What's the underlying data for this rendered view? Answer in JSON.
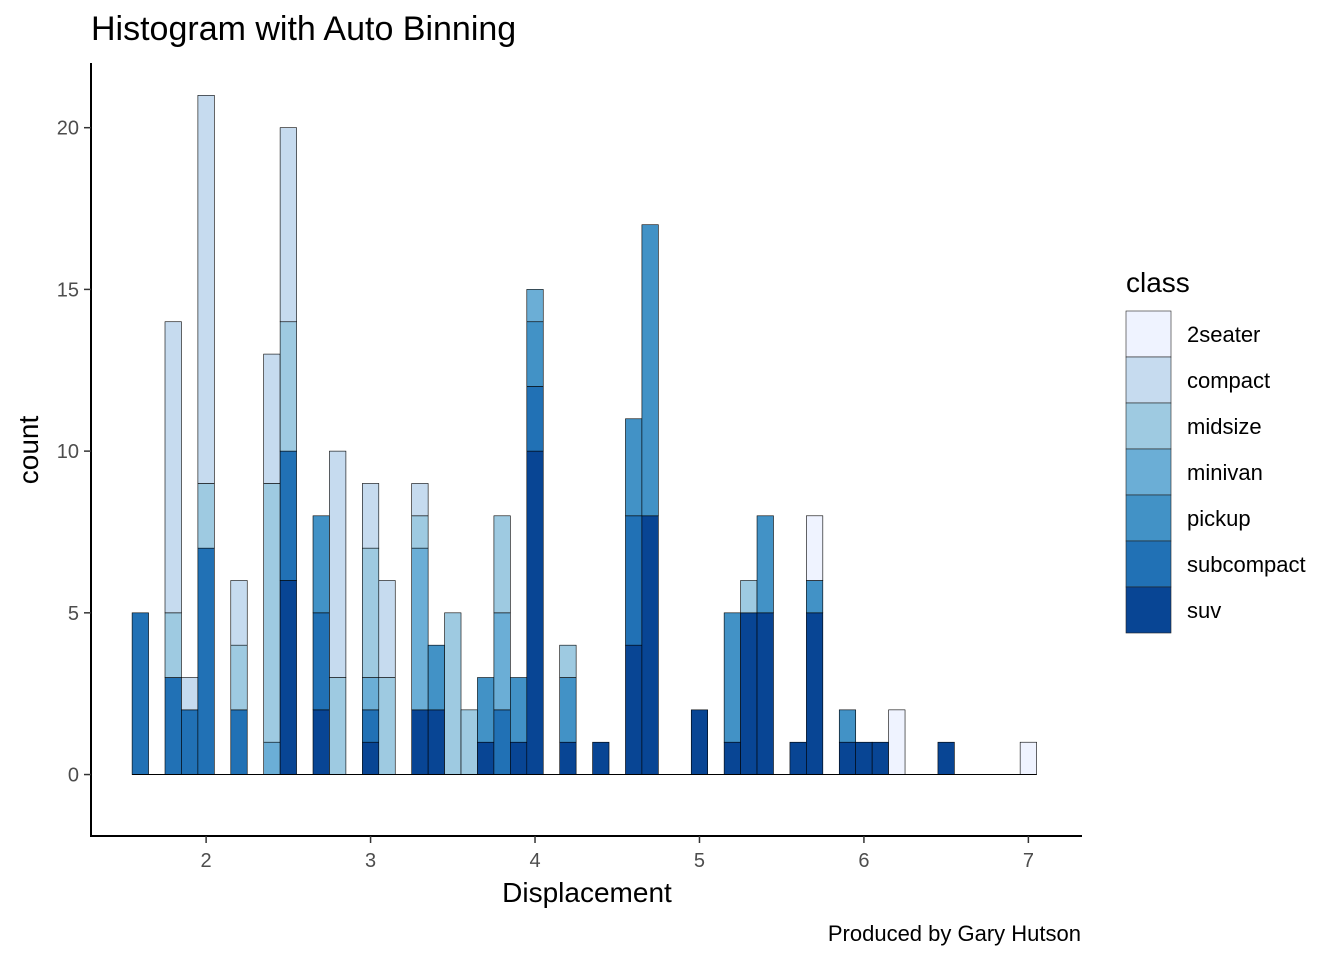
{
  "chart_data": {
    "type": "bar",
    "title": "Histogram with Auto Binning",
    "xlabel": "Displacement",
    "ylabel": "count",
    "caption": "Produced by Gary Hutson",
    "xlim": [
      1.3,
      7.32
    ],
    "ylim": [
      -1.9,
      22.0
    ],
    "x_ticks": [
      2,
      3,
      4,
      5,
      6,
      7
    ],
    "y_ticks": [
      0,
      5,
      10,
      15,
      20
    ],
    "grid": false,
    "legend": {
      "title": "class",
      "placement": "right"
    },
    "bin_width": 0.1,
    "series": [
      {
        "name": "2seater",
        "color": "#eff3ff"
      },
      {
        "name": "compact",
        "color": "#c6dbef"
      },
      {
        "name": "midsize",
        "color": "#9ecae1"
      },
      {
        "name": "minivan",
        "color": "#6baed6"
      },
      {
        "name": "pickup",
        "color": "#4292c6"
      },
      {
        "name": "subcompact",
        "color": "#2171b5"
      },
      {
        "name": "suv",
        "color": "#084594"
      }
    ],
    "bins": [
      {
        "x": 1.6,
        "counts": {
          "subcompact": 5
        }
      },
      {
        "x": 1.8,
        "counts": {
          "compact": 9,
          "midsize": 2,
          "subcompact": 3
        }
      },
      {
        "x": 1.9,
        "counts": {
          "compact": 1,
          "subcompact": 2
        }
      },
      {
        "x": 2.0,
        "counts": {
          "compact": 12,
          "midsize": 2,
          "subcompact": 7
        }
      },
      {
        "x": 2.2,
        "counts": {
          "compact": 2,
          "midsize": 2,
          "subcompact": 2
        }
      },
      {
        "x": 2.4,
        "counts": {
          "compact": 4,
          "midsize": 8,
          "minivan": 1
        }
      },
      {
        "x": 2.5,
        "counts": {
          "compact": 6,
          "midsize": 4,
          "subcompact": 4,
          "suv": 6
        }
      },
      {
        "x": 2.7,
        "counts": {
          "pickup": 3,
          "subcompact": 3,
          "suv": 2
        }
      },
      {
        "x": 2.8,
        "counts": {
          "compact": 7,
          "midsize": 3
        }
      },
      {
        "x": 3.0,
        "counts": {
          "compact": 2,
          "midsize": 4,
          "minivan": 1,
          "subcompact": 1,
          "suv": 1
        }
      },
      {
        "x": 3.1,
        "counts": {
          "compact": 3,
          "midsize": 3
        }
      },
      {
        "x": 3.3,
        "counts": {
          "compact": 1,
          "midsize": 1,
          "minivan": 5,
          "suv": 2
        }
      },
      {
        "x": 3.4,
        "counts": {
          "pickup": 2,
          "suv": 2
        }
      },
      {
        "x": 3.5,
        "counts": {
          "midsize": 5
        }
      },
      {
        "x": 3.6,
        "counts": {
          "midsize": 2
        }
      },
      {
        "x": 3.7,
        "counts": {
          "pickup": 2,
          "suv": 1
        }
      },
      {
        "x": 3.8,
        "counts": {
          "midsize": 3,
          "minivan": 3,
          "subcompact": 2
        }
      },
      {
        "x": 3.9,
        "counts": {
          "pickup": 2,
          "suv": 1
        }
      },
      {
        "x": 4.0,
        "counts": {
          "minivan": 1,
          "pickup": 2,
          "subcompact": 2,
          "suv": 10
        }
      },
      {
        "x": 4.2,
        "counts": {
          "midsize": 1,
          "pickup": 2,
          "suv": 1
        }
      },
      {
        "x": 4.4,
        "counts": {
          "suv": 1
        }
      },
      {
        "x": 4.6,
        "counts": {
          "pickup": 3,
          "subcompact": 4,
          "suv": 4
        }
      },
      {
        "x": 4.7,
        "counts": {
          "pickup": 9,
          "suv": 8
        }
      },
      {
        "x": 5.0,
        "counts": {
          "suv": 2
        }
      },
      {
        "x": 5.2,
        "counts": {
          "pickup": 4,
          "suv": 1
        }
      },
      {
        "x": 5.3,
        "counts": {
          "midsize": 1,
          "suv": 5
        }
      },
      {
        "x": 5.4,
        "counts": {
          "pickup": 3,
          "suv": 5
        }
      },
      {
        "x": 5.6,
        "counts": {
          "suv": 1
        }
      },
      {
        "x": 5.7,
        "counts": {
          "2seater": 2,
          "pickup": 1,
          "suv": 5
        }
      },
      {
        "x": 5.9,
        "counts": {
          "pickup": 1,
          "suv": 1
        }
      },
      {
        "x": 6.0,
        "counts": {
          "suv": 1
        }
      },
      {
        "x": 6.1,
        "counts": {
          "suv": 1
        }
      },
      {
        "x": 6.2,
        "counts": {
          "2seater": 2
        }
      },
      {
        "x": 6.5,
        "counts": {
          "suv": 1
        }
      },
      {
        "x": 7.0,
        "counts": {
          "2seater": 1
        }
      }
    ]
  }
}
